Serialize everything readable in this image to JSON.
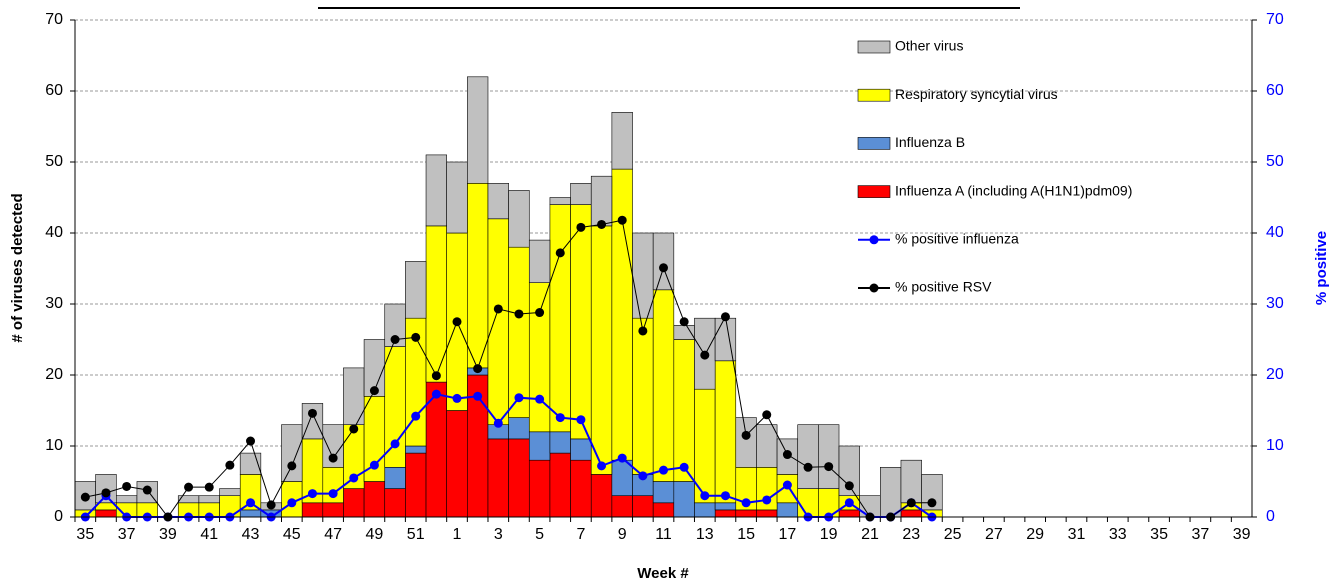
{
  "chart_data": {
    "type": "stacked-bar-line",
    "categories": [
      "35",
      null,
      "37",
      null,
      "39",
      null,
      "41",
      null,
      "43",
      null,
      "45",
      null,
      "47",
      null,
      "49",
      null,
      "51",
      null,
      "1",
      null,
      "3",
      null,
      "5",
      null,
      "7",
      null,
      "9",
      null,
      "11",
      null,
      "13",
      null,
      "15",
      null,
      "17",
      null,
      "19",
      null,
      "21",
      null,
      "23",
      null,
      "25",
      null,
      "27",
      null,
      "29",
      null,
      "31",
      null,
      "33",
      null,
      "35",
      null,
      "37",
      null,
      "39"
    ],
    "x_label": "Week #",
    "y_label": "# of viruses detected",
    "y2_label": "% positive",
    "ylim": [
      0,
      70
    ],
    "yticks": [
      0,
      10,
      20,
      30,
      40,
      50,
      60,
      70
    ],
    "y2lim": [
      0,
      70
    ],
    "y2ticks": [
      0,
      10,
      20,
      30,
      40,
      50,
      60,
      70
    ],
    "y2_color": "#0000ff",
    "grid": true,
    "legend": "upper right",
    "series": [
      {
        "name": "Influenza A (including A(H1N1)pdm09)",
        "kind": "bar",
        "color": "#ff0000",
        "values": [
          0,
          1,
          0,
          0,
          0,
          0,
          0,
          0,
          0,
          0,
          0,
          2,
          2,
          4,
          5,
          4,
          9,
          19,
          15,
          20,
          11,
          11,
          8,
          9,
          8,
          6,
          3,
          3,
          2,
          0,
          0,
          1,
          1,
          1,
          0,
          0,
          0,
          1,
          0,
          0,
          1,
          0,
          null,
          null,
          null,
          null,
          null,
          null,
          null,
          null,
          null,
          null,
          null,
          null,
          null,
          null,
          null
        ]
      },
      {
        "name": "Influenza B",
        "kind": "bar",
        "color": "#5b8fd6",
        "values": [
          0,
          0,
          0,
          0,
          0,
          0,
          0,
          0,
          1,
          1,
          0,
          0,
          0,
          0,
          0,
          3,
          1,
          0,
          0,
          1,
          2,
          3,
          4,
          3,
          3,
          0,
          5,
          3,
          3,
          5,
          2,
          1,
          0,
          0,
          2,
          0,
          0,
          0,
          0,
          0,
          0,
          0,
          null,
          null,
          null,
          null,
          null,
          null,
          null,
          null,
          null,
          null,
          null,
          null,
          null,
          null,
          null
        ]
      },
      {
        "name": "Respiratory syncytial virus",
        "kind": "bar",
        "color": "#ffff00",
        "values": [
          1,
          1,
          2,
          2,
          0,
          2,
          2,
          3,
          5,
          0,
          5,
          9,
          5,
          9,
          12,
          17,
          18,
          22,
          25,
          26,
          29,
          24,
          21,
          32,
          33,
          35,
          41,
          22,
          27,
          20,
          16,
          20,
          6,
          6,
          4,
          4,
          4,
          2,
          0,
          0,
          1,
          1,
          null,
          null,
          null,
          null,
          null,
          null,
          null,
          null,
          null,
          null,
          null,
          null,
          null,
          null,
          null
        ]
      },
      {
        "name": "Other virus",
        "kind": "bar",
        "color": "#c0c0c0",
        "values": [
          4,
          4,
          1,
          3,
          0,
          1,
          1,
          1,
          3,
          1,
          8,
          5,
          6,
          8,
          8,
          6,
          8,
          10,
          10,
          15,
          5,
          8,
          6,
          1,
          3,
          7,
          8,
          12,
          8,
          2,
          10,
          6,
          7,
          6,
          5,
          9,
          9,
          7,
          3,
          7,
          6,
          5,
          null,
          null,
          null,
          null,
          null,
          null,
          null,
          null,
          null,
          null,
          null,
          null,
          null,
          null,
          null
        ]
      },
      {
        "name": "% positive influenza",
        "kind": "line",
        "axis": "y2",
        "color": "#0000ff",
        "values": [
          0,
          3,
          0,
          0,
          0,
          0,
          0,
          0,
          2,
          0,
          2,
          3.3,
          3.3,
          5.5,
          7.3,
          10.3,
          14.2,
          17.3,
          16.7,
          17,
          13.2,
          16.8,
          16.6,
          14,
          13.7,
          7.2,
          8.3,
          5.8,
          6.6,
          7,
          3,
          3,
          2,
          2.4,
          4.5,
          0,
          0,
          2,
          0,
          0,
          2,
          0,
          null,
          null,
          null,
          null,
          null,
          null,
          null,
          null,
          null,
          null,
          null,
          null,
          null,
          null,
          null
        ]
      },
      {
        "name": "% positive RSV",
        "kind": "line",
        "axis": "y2",
        "color": "#000000",
        "values": [
          2.8,
          3.4,
          4.3,
          3.8,
          0,
          4.2,
          4.2,
          7.3,
          10.7,
          1.7,
          7.2,
          14.6,
          8.3,
          12.4,
          17.8,
          25,
          25.3,
          19.9,
          27.5,
          20.9,
          29.3,
          28.6,
          28.8,
          37.2,
          40.8,
          41.2,
          41.8,
          26.2,
          35.1,
          27.5,
          22.8,
          28.2,
          11.5,
          14.4,
          8.8,
          7,
          7.1,
          4.4,
          0,
          0,
          2,
          2,
          null,
          null,
          null,
          null,
          null,
          null,
          null,
          null,
          null,
          null,
          null,
          null,
          null,
          null,
          null
        ]
      }
    ]
  }
}
